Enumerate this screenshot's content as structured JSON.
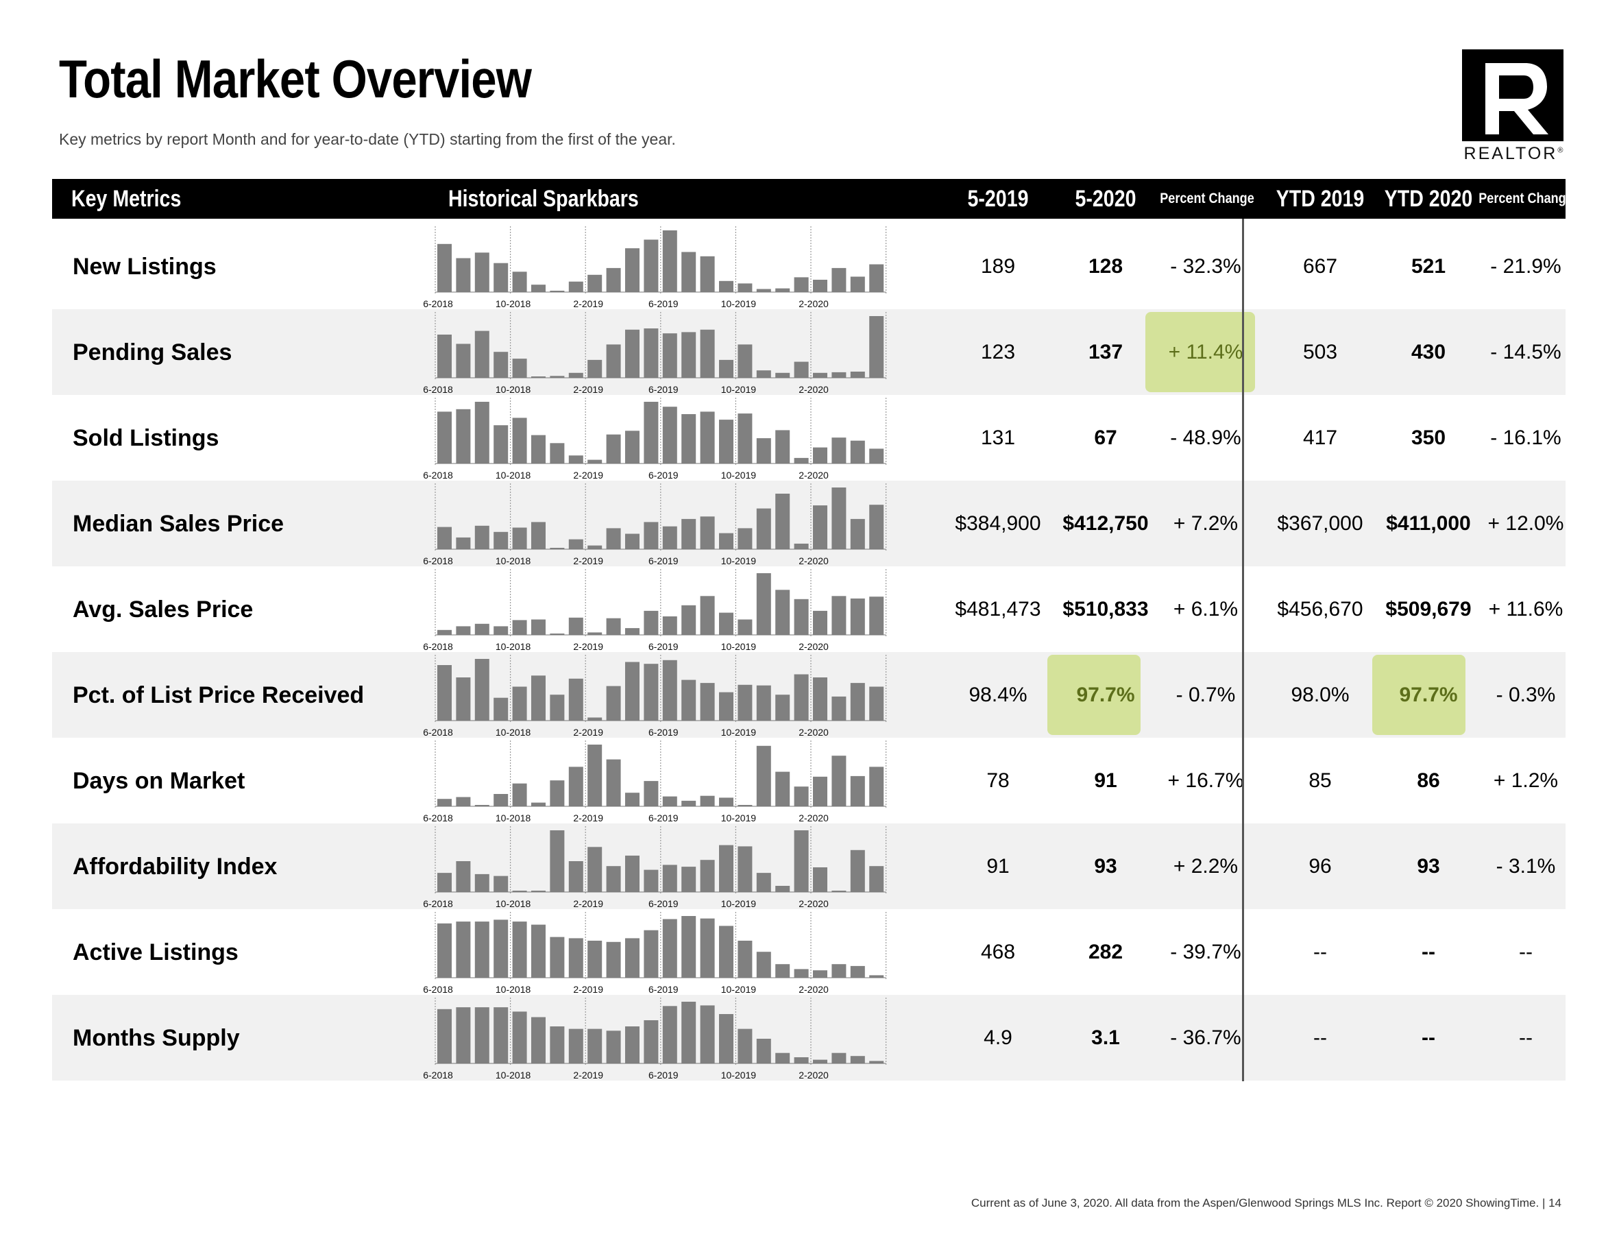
{
  "header": {
    "title": "Total Market Overview",
    "subtitle": "Key metrics by report Month and for year-to-date (YTD) starting from the first of the year.",
    "logo_letter": "R",
    "logo_text": "REALTOR",
    "logo_mark": "®"
  },
  "table": {
    "columns": {
      "key_metrics": "Key Metrics",
      "sparkbars": "Historical Sparkbars",
      "month_prev": "5-2019",
      "month_curr": "5-2020",
      "pct_change_month": "Percent Change",
      "ytd_prev": "YTD 2019",
      "ytd_curr": "YTD 2020",
      "pct_change_ytd": "Percent Change"
    },
    "spark_axis_labels": [
      "6-2018",
      "10-2018",
      "2-2019",
      "6-2019",
      "10-2019",
      "2-2020"
    ],
    "rows": [
      {
        "metric": "New Listings",
        "month_prev": "189",
        "month_curr": "128",
        "pct_month": "- 32.3%",
        "ytd_prev": "667",
        "ytd_curr": "521",
        "pct_ytd": "- 21.9%",
        "spark": [
          0.78,
          0.55,
          0.64,
          0.47,
          0.33,
          0.12,
          0.0,
          0.17,
          0.28,
          0.39,
          0.71,
          0.85,
          1.0,
          0.65,
          0.58,
          0.18,
          0.14,
          0.05,
          0.06,
          0.24,
          0.2,
          0.39,
          0.25,
          0.45
        ]
      },
      {
        "metric": "Pending Sales",
        "month_prev": "123",
        "month_curr": "137",
        "pct_month": "+ 11.4%",
        "ytd_prev": "503",
        "ytd_curr": "430",
        "pct_ytd": "- 14.5%",
        "highlight_pct_month": true,
        "spark": [
          0.7,
          0.55,
          0.76,
          0.42,
          0.31,
          0.02,
          0.03,
          0.08,
          0.29,
          0.54,
          0.78,
          0.8,
          0.72,
          0.74,
          0.78,
          0.29,
          0.54,
          0.12,
          0.08,
          0.26,
          0.08,
          0.09,
          0.1,
          1.0
        ]
      },
      {
        "metric": "Sold Listings",
        "month_prev": "131",
        "month_curr": "67",
        "pct_month": "- 48.9%",
        "ytd_prev": "417",
        "ytd_curr": "350",
        "pct_ytd": "- 16.1%",
        "spark": [
          0.84,
          0.88,
          1.0,
          0.62,
          0.74,
          0.46,
          0.33,
          0.13,
          0.06,
          0.47,
          0.53,
          1.0,
          0.92,
          0.8,
          0.84,
          0.71,
          0.81,
          0.41,
          0.54,
          0.09,
          0.26,
          0.42,
          0.37,
          0.24
        ]
      },
      {
        "metric": "Median Sales Price",
        "month_prev": "$384,900",
        "month_curr": "$412,750",
        "pct_month": "+ 7.2%",
        "ytd_prev": "$367,000",
        "ytd_curr": "$411,000",
        "pct_ytd": "+ 12.0%",
        "spark": [
          0.36,
          0.19,
          0.38,
          0.28,
          0.35,
          0.44,
          0.02,
          0.16,
          0.06,
          0.34,
          0.25,
          0.44,
          0.37,
          0.49,
          0.53,
          0.26,
          0.34,
          0.66,
          0.9,
          0.09,
          0.71,
          1.0,
          0.49,
          0.72
        ]
      },
      {
        "metric": "Avg. Sales Price",
        "month_prev": "$481,473",
        "month_curr": "$510,833",
        "pct_month": "+ 6.1%",
        "ytd_prev": "$456,670",
        "ytd_curr": "$509,679",
        "pct_ytd": "+ 11.6%",
        "spark": [
          0.08,
          0.14,
          0.18,
          0.14,
          0.24,
          0.25,
          0.02,
          0.28,
          0.04,
          0.27,
          0.11,
          0.39,
          0.3,
          0.48,
          0.63,
          0.36,
          0.25,
          1.0,
          0.73,
          0.58,
          0.39,
          0.63,
          0.59,
          0.62
        ]
      },
      {
        "metric": "Pct. of List Price Received",
        "month_prev": "98.4%",
        "month_curr": "97.7%",
        "pct_month": "- 0.7%",
        "ytd_prev": "98.0%",
        "ytd_curr": "97.7%",
        "pct_ytd": "- 0.3%",
        "highlight_month_curr": true,
        "highlight_ytd_curr": true,
        "spark": [
          0.9,
          0.7,
          1.0,
          0.37,
          0.55,
          0.73,
          0.42,
          0.68,
          0.05,
          0.56,
          0.95,
          0.92,
          0.98,
          0.66,
          0.61,
          0.46,
          0.58,
          0.57,
          0.42,
          0.75,
          0.7,
          0.39,
          0.61,
          0.55
        ]
      },
      {
        "metric": "Days on Market",
        "month_prev": "78",
        "month_curr": "91",
        "pct_month": "+ 16.7%",
        "ytd_prev": "85",
        "ytd_curr": "86",
        "pct_ytd": "+ 1.2%",
        "spark": [
          0.12,
          0.15,
          0.0,
          0.2,
          0.37,
          0.06,
          0.42,
          0.64,
          1.0,
          0.76,
          0.22,
          0.41,
          0.16,
          0.09,
          0.17,
          0.14,
          0.02,
          0.98,
          0.56,
          0.32,
          0.48,
          0.82,
          0.49,
          0.64
        ]
      },
      {
        "metric": "Affordability Index",
        "month_prev": "91",
        "month_curr": "93",
        "pct_month": "+ 2.2%",
        "ytd_prev": "96",
        "ytd_curr": "93",
        "pct_ytd": "- 3.1%",
        "spark": [
          0.31,
          0.5,
          0.29,
          0.26,
          0.0,
          0.0,
          1.0,
          0.5,
          0.73,
          0.42,
          0.59,
          0.36,
          0.44,
          0.41,
          0.52,
          0.76,
          0.74,
          0.31,
          0.1,
          1.0,
          0.4,
          0.02,
          0.68,
          0.42
        ]
      },
      {
        "metric": "Active Listings",
        "month_prev": "468",
        "month_curr": "282",
        "pct_month": "- 39.7%",
        "ytd_prev": "--",
        "ytd_curr": "--",
        "pct_ytd": "--",
        "spark": [
          0.88,
          0.91,
          0.91,
          0.94,
          0.91,
          0.86,
          0.66,
          0.64,
          0.6,
          0.58,
          0.64,
          0.77,
          0.95,
          1.0,
          0.96,
          0.84,
          0.6,
          0.42,
          0.22,
          0.14,
          0.12,
          0.22,
          0.19,
          0.04
        ]
      },
      {
        "metric": "Months Supply",
        "month_prev": "4.9",
        "month_curr": "3.1",
        "pct_month": "- 36.7%",
        "ytd_prev": "--",
        "ytd_curr": "--",
        "pct_ytd": "--",
        "spark": [
          0.88,
          0.91,
          0.91,
          0.91,
          0.84,
          0.75,
          0.6,
          0.56,
          0.56,
          0.53,
          0.6,
          0.7,
          0.93,
          1.0,
          0.94,
          0.8,
          0.56,
          0.4,
          0.17,
          0.1,
          0.06,
          0.17,
          0.12,
          0.04
        ]
      }
    ]
  },
  "footer": {
    "text": "Current as of June 3, 2020.  All data from the Aspen/Glenwood Springs MLS Inc. Report © 2020 ShowingTime.  |  14"
  },
  "colors": {
    "header_bg": "#000000",
    "row_shade": "#f1f1f1",
    "highlight": "#d4e29a",
    "highlight_text": "#5c6e1a",
    "bar": "#808080"
  }
}
